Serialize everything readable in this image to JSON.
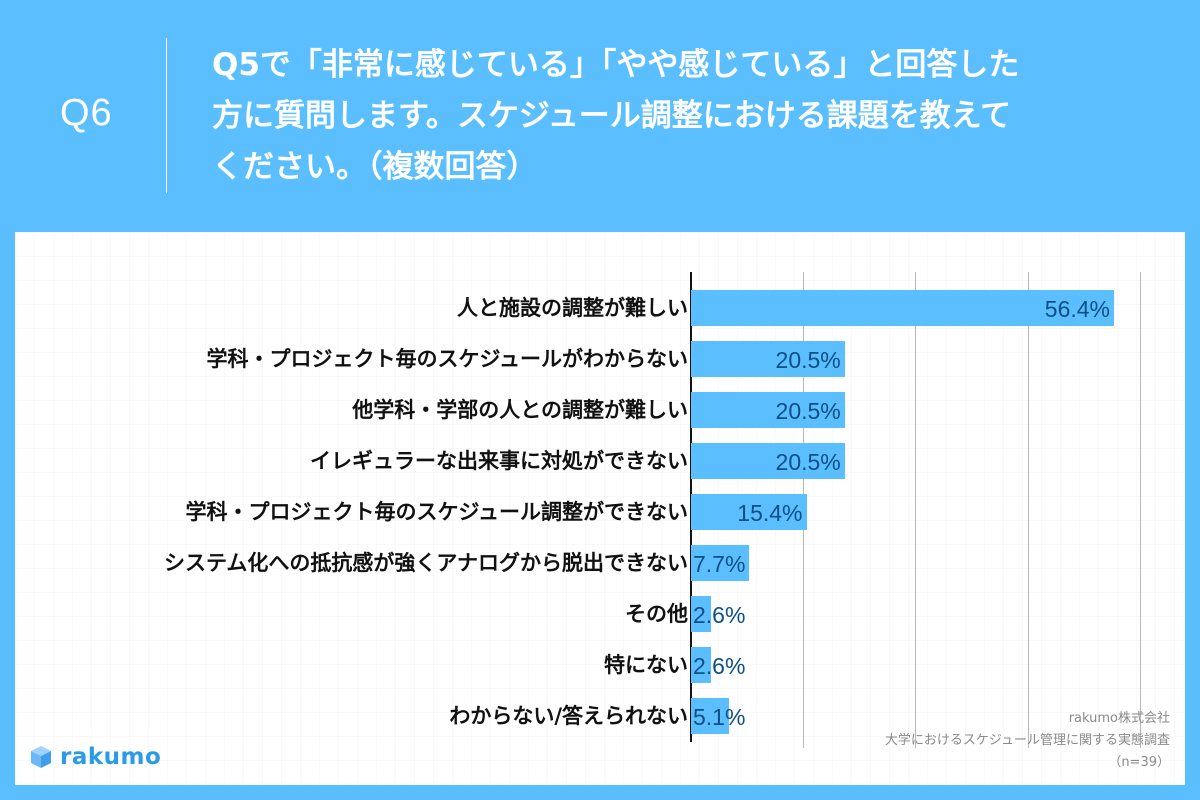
{
  "header": {
    "question_number": "Q6",
    "question_lines": [
      "Q5で「非常に感じている」「やや感じている」と回答した",
      "方に質問します。スケジュール調整における課題を教えて",
      "ください。（複数回答）"
    ]
  },
  "colors": {
    "frame": "#5bbfff",
    "bar": "#5bbfff",
    "value_text": "#0d4f86",
    "label_text": "#111111",
    "gridline": "#b9b9b9"
  },
  "chart_data": {
    "type": "bar",
    "orientation": "horizontal",
    "title": "Q5で「非常に感じている」「やや感じている」と回答した方に質問します。スケジュール調整における課題を教えてください。（複数回答）",
    "categories": [
      "人と施設の調整が難しい",
      "学科・プロジェクト毎のスケジュールがわからない",
      "他学科・学部の人との調整が難しい",
      "イレギュラーな出来事に対処ができない",
      "学科・プロジェクト毎のスケジュール調整ができない",
      "システム化への抵抗感が強くアナログから脱出できない",
      "その他",
      "特にない",
      "わからない/答えられない"
    ],
    "values": [
      56.4,
      20.5,
      20.5,
      20.5,
      15.4,
      7.7,
      2.6,
      2.6,
      5.1
    ],
    "value_labels": [
      "56.4%",
      "20.5%",
      "20.5%",
      "20.5%",
      "15.4%",
      "7.7%",
      "2.6%",
      "2.6%",
      "5.1%"
    ],
    "unit": "%",
    "xlabel": "",
    "ylabel": "",
    "xlim": [
      0,
      60
    ],
    "gridlines_at": [
      15,
      30,
      45,
      60
    ],
    "grid": true,
    "legend": null,
    "sample_size": "n=39"
  },
  "footer": {
    "logo_text": "rakumo",
    "source_lines": [
      "rakumo株式会社",
      "大学におけるスケジュール管理に関する実態調査",
      "（n=39）"
    ]
  }
}
